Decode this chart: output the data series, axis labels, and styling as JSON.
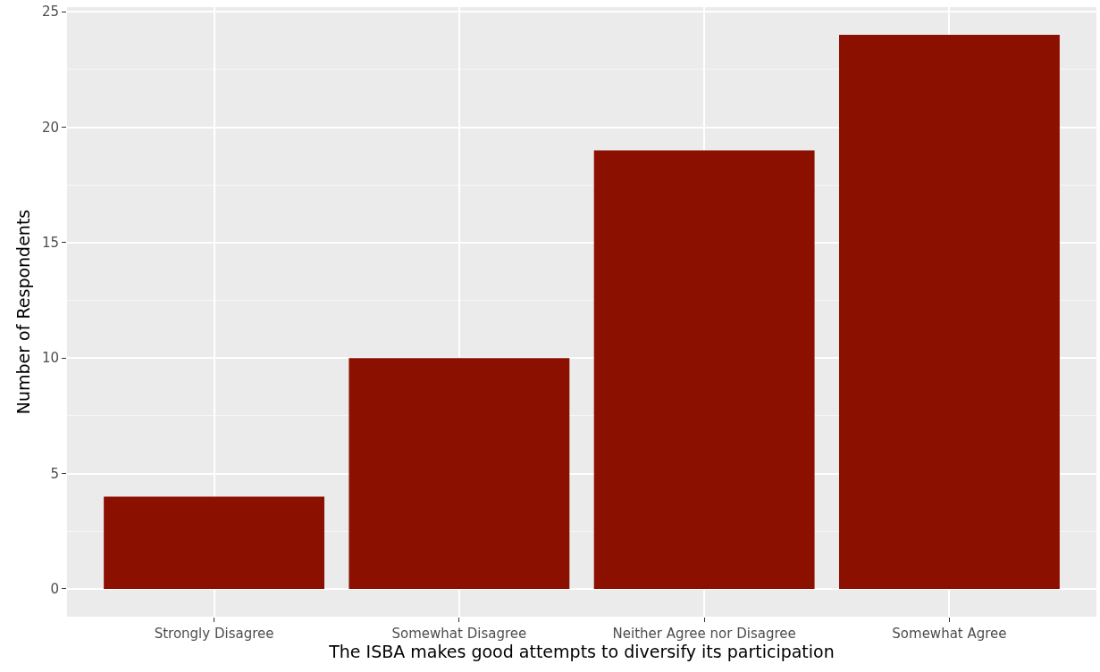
{
  "chart_data": {
    "type": "bar",
    "xlabel": "The ISBA makes good attempts to diversify its participation",
    "ylabel": "Number of Respondents",
    "categories": [
      "Strongly Disagree",
      "Somewhat Disagree",
      "Neither Agree nor Disagree",
      "Somewhat Agree"
    ],
    "values": [
      4,
      10,
      19,
      24
    ],
    "color": "#8b1000",
    "ylim": [
      -1.2,
      25.2
    ],
    "yticks": [
      0,
      5,
      10,
      15,
      20,
      25
    ],
    "grid": true
  }
}
